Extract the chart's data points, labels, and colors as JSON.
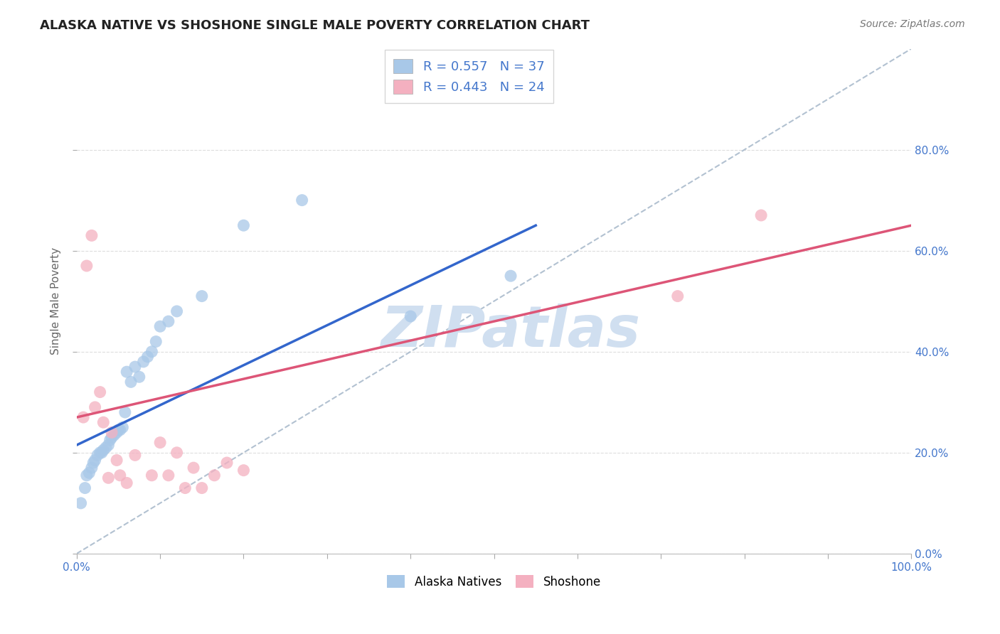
{
  "title": "ALASKA NATIVE VS SHOSHONE SINGLE MALE POVERTY CORRELATION CHART",
  "source": "Source: ZipAtlas.com",
  "ylabel": "Single Male Poverty",
  "xlim": [
    0.0,
    1.0
  ],
  "ylim": [
    0.0,
    1.0
  ],
  "xtick_positions": [
    0.0,
    0.1,
    0.2,
    0.3,
    0.4,
    0.5,
    0.6,
    0.7,
    0.8,
    0.9,
    1.0
  ],
  "xtick_show_labels": [
    0,
    10
  ],
  "ytick_positions": [
    0.0,
    0.2,
    0.4,
    0.6,
    0.8
  ],
  "ytick_labels": [
    "0.0%",
    "20.0%",
    "40.0%",
    "60.0%",
    "80.0%"
  ],
  "alaska_color": "#a8c8e8",
  "shoshone_color": "#f4b0c0",
  "alaska_line_color": "#3366cc",
  "shoshone_line_color": "#dd5577",
  "diagonal_color": "#aabbcc",
  "R_alaska": 0.557,
  "N_alaska": 37,
  "R_shoshone": 0.443,
  "N_shoshone": 24,
  "watermark_text": "ZIPatlas",
  "watermark_color": "#d0dff0",
  "background_color": "#ffffff",
  "grid_color": "#dddddd",
  "alaska_scatter_x": [
    0.005,
    0.01,
    0.012,
    0.015,
    0.018,
    0.02,
    0.022,
    0.025,
    0.028,
    0.03,
    0.032,
    0.035,
    0.038,
    0.04,
    0.042,
    0.045,
    0.048,
    0.05,
    0.052,
    0.055,
    0.058,
    0.06,
    0.065,
    0.07,
    0.075,
    0.08,
    0.085,
    0.09,
    0.095,
    0.1,
    0.11,
    0.12,
    0.15,
    0.2,
    0.27,
    0.4,
    0.52
  ],
  "alaska_scatter_y": [
    0.1,
    0.13,
    0.155,
    0.16,
    0.17,
    0.18,
    0.185,
    0.195,
    0.2,
    0.2,
    0.205,
    0.21,
    0.215,
    0.225,
    0.23,
    0.235,
    0.24,
    0.245,
    0.245,
    0.25,
    0.28,
    0.36,
    0.34,
    0.37,
    0.35,
    0.38,
    0.39,
    0.4,
    0.42,
    0.45,
    0.46,
    0.48,
    0.51,
    0.65,
    0.7,
    0.47,
    0.55
  ],
  "shoshone_scatter_x": [
    0.008,
    0.012,
    0.018,
    0.022,
    0.028,
    0.032,
    0.038,
    0.042,
    0.048,
    0.052,
    0.06,
    0.07,
    0.09,
    0.1,
    0.11,
    0.12,
    0.13,
    0.14,
    0.15,
    0.165,
    0.18,
    0.2,
    0.72,
    0.82
  ],
  "shoshone_scatter_y": [
    0.27,
    0.57,
    0.63,
    0.29,
    0.32,
    0.26,
    0.15,
    0.24,
    0.185,
    0.155,
    0.14,
    0.195,
    0.155,
    0.22,
    0.155,
    0.2,
    0.13,
    0.17,
    0.13,
    0.155,
    0.18,
    0.165,
    0.51,
    0.67
  ],
  "alaska_line_x0": 0.0,
  "alaska_line_y0": 0.215,
  "alaska_line_x1": 0.55,
  "alaska_line_y1": 0.65,
  "shoshone_line_x0": 0.0,
  "shoshone_line_y0": 0.27,
  "shoshone_line_x1": 1.0,
  "shoshone_line_y1": 0.65,
  "right_ytick_color": "#4477cc",
  "axis_label_color": "#666666",
  "title_fontsize": 13,
  "source_fontsize": 10,
  "tick_label_fontsize": 11,
  "legend_fontsize": 13
}
